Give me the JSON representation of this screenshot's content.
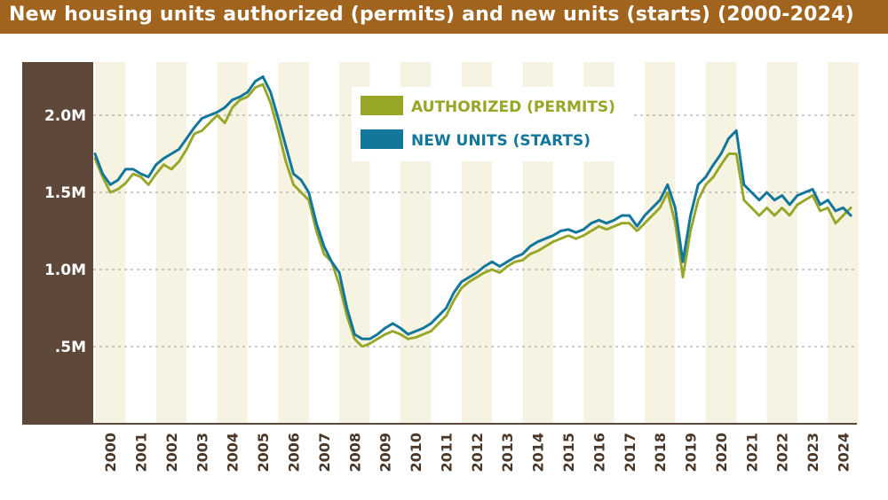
{
  "chart_data": {
    "type": "line",
    "title": "New housing units authorized (permits) and new units (starts) (2000-2024)",
    "xlabel": "",
    "ylabel": "",
    "xlim": [
      2000,
      2024.95
    ],
    "ylim": [
      0,
      2.3
    ],
    "y_ticks": [
      {
        "value": 0.5,
        "label": ".5M"
      },
      {
        "value": 1.0,
        "label": "1.0M"
      },
      {
        "value": 1.5,
        "label": "1.5M"
      },
      {
        "value": 2.0,
        "label": "2.0M"
      }
    ],
    "x_tick_labels": [
      "2000",
      "2001",
      "2002",
      "2003",
      "2004",
      "2005",
      "2006",
      "2007",
      "2008",
      "2009",
      "2010",
      "2011",
      "2012",
      "2013",
      "2014",
      "2015",
      "2016",
      "2017",
      "2018",
      "2019",
      "2020",
      "2021",
      "2022",
      "2023",
      "2024"
    ],
    "grid": "horizontal dotted",
    "legend_position": "top-center",
    "series": [
      {
        "name": "AUTHORIZED (PERMITS)",
        "color": "#97a626",
        "style": "dotted",
        "x": [
          2000.0,
          2000.25,
          2000.5,
          2000.75,
          2001.0,
          2001.25,
          2001.5,
          2001.75,
          2002.0,
          2002.25,
          2002.5,
          2002.75,
          2003.0,
          2003.25,
          2003.5,
          2003.75,
          2004.0,
          2004.25,
          2004.5,
          2004.75,
          2005.0,
          2005.25,
          2005.5,
          2005.75,
          2006.0,
          2006.25,
          2006.5,
          2006.75,
          2007.0,
          2007.25,
          2007.5,
          2007.75,
          2008.0,
          2008.25,
          2008.5,
          2008.75,
          2009.0,
          2009.25,
          2009.5,
          2009.75,
          2010.0,
          2010.25,
          2010.5,
          2010.75,
          2011.0,
          2011.25,
          2011.5,
          2011.75,
          2012.0,
          2012.25,
          2012.5,
          2012.75,
          2013.0,
          2013.25,
          2013.5,
          2013.75,
          2014.0,
          2014.25,
          2014.5,
          2014.75,
          2015.0,
          2015.25,
          2015.5,
          2015.75,
          2016.0,
          2016.25,
          2016.5,
          2016.75,
          2017.0,
          2017.25,
          2017.5,
          2017.75,
          2018.0,
          2018.25,
          2018.5,
          2018.75,
          2019.0,
          2019.25,
          2019.5,
          2019.75,
          2020.0,
          2020.25,
          2020.5,
          2020.75,
          2021.0,
          2021.25,
          2021.5,
          2021.75,
          2022.0,
          2022.25,
          2022.5,
          2022.75,
          2023.0,
          2023.25,
          2023.5,
          2023.75,
          2024.0,
          2024.25,
          2024.5,
          2024.75
        ],
        "values": [
          1.72,
          1.6,
          1.5,
          1.52,
          1.56,
          1.62,
          1.6,
          1.55,
          1.62,
          1.68,
          1.65,
          1.7,
          1.78,
          1.88,
          1.9,
          1.95,
          2.0,
          1.95,
          2.05,
          2.1,
          2.12,
          2.18,
          2.2,
          2.08,
          1.9,
          1.7,
          1.55,
          1.5,
          1.45,
          1.25,
          1.1,
          1.05,
          0.9,
          0.7,
          0.55,
          0.5,
          0.52,
          0.55,
          0.58,
          0.6,
          0.58,
          0.55,
          0.56,
          0.58,
          0.6,
          0.65,
          0.7,
          0.8,
          0.88,
          0.92,
          0.95,
          0.98,
          1.0,
          0.98,
          1.02,
          1.05,
          1.06,
          1.1,
          1.12,
          1.15,
          1.18,
          1.2,
          1.22,
          1.2,
          1.22,
          1.25,
          1.28,
          1.26,
          1.28,
          1.3,
          1.3,
          1.25,
          1.3,
          1.35,
          1.4,
          1.5,
          1.3,
          0.95,
          1.25,
          1.45,
          1.55,
          1.6,
          1.68,
          1.75,
          1.75,
          1.45,
          1.4,
          1.35,
          1.4,
          1.35,
          1.4,
          1.35,
          1.42,
          1.45,
          1.48,
          1.38,
          1.4,
          1.3,
          1.35,
          1.4
        ]
      },
      {
        "name": "NEW UNITS (STARTS)",
        "color": "#12779a",
        "style": "solid",
        "x": [
          2000.0,
          2000.25,
          2000.5,
          2000.75,
          2001.0,
          2001.25,
          2001.5,
          2001.75,
          2002.0,
          2002.25,
          2002.5,
          2002.75,
          2003.0,
          2003.25,
          2003.5,
          2003.75,
          2004.0,
          2004.25,
          2004.5,
          2004.75,
          2005.0,
          2005.25,
          2005.5,
          2005.75,
          2006.0,
          2006.25,
          2006.5,
          2006.75,
          2007.0,
          2007.25,
          2007.5,
          2007.75,
          2008.0,
          2008.25,
          2008.5,
          2008.75,
          2009.0,
          2009.25,
          2009.5,
          2009.75,
          2010.0,
          2010.25,
          2010.5,
          2010.75,
          2011.0,
          2011.25,
          2011.5,
          2011.75,
          2012.0,
          2012.25,
          2012.5,
          2012.75,
          2013.0,
          2013.25,
          2013.5,
          2013.75,
          2014.0,
          2014.25,
          2014.5,
          2014.75,
          2015.0,
          2015.25,
          2015.5,
          2015.75,
          2016.0,
          2016.25,
          2016.5,
          2016.75,
          2017.0,
          2017.25,
          2017.5,
          2017.75,
          2018.0,
          2018.25,
          2018.5,
          2018.75,
          2019.0,
          2019.25,
          2019.5,
          2019.75,
          2020.0,
          2020.25,
          2020.5,
          2020.75,
          2021.0,
          2021.25,
          2021.5,
          2021.75,
          2022.0,
          2022.25,
          2022.5,
          2022.75,
          2023.0,
          2023.25,
          2023.5,
          2023.75,
          2024.0,
          2024.25,
          2024.5,
          2024.75
        ],
        "values": [
          1.75,
          1.62,
          1.55,
          1.58,
          1.65,
          1.65,
          1.62,
          1.6,
          1.68,
          1.72,
          1.75,
          1.78,
          1.85,
          1.92,
          1.98,
          2.0,
          2.02,
          2.05,
          2.1,
          2.12,
          2.15,
          2.22,
          2.25,
          2.15,
          1.98,
          1.8,
          1.62,
          1.58,
          1.5,
          1.3,
          1.15,
          1.05,
          0.98,
          0.75,
          0.58,
          0.55,
          0.55,
          0.58,
          0.62,
          0.65,
          0.62,
          0.58,
          0.6,
          0.62,
          0.65,
          0.7,
          0.75,
          0.85,
          0.92,
          0.95,
          0.98,
          1.02,
          1.05,
          1.02,
          1.05,
          1.08,
          1.1,
          1.15,
          1.18,
          1.2,
          1.22,
          1.25,
          1.26,
          1.24,
          1.26,
          1.3,
          1.32,
          1.3,
          1.32,
          1.35,
          1.35,
          1.28,
          1.35,
          1.4,
          1.45,
          1.55,
          1.4,
          1.05,
          1.35,
          1.55,
          1.6,
          1.68,
          1.75,
          1.85,
          1.9,
          1.55,
          1.5,
          1.45,
          1.5,
          1.45,
          1.48,
          1.42,
          1.48,
          1.5,
          1.52,
          1.42,
          1.45,
          1.38,
          1.4,
          1.35
        ]
      }
    ]
  },
  "colors": {
    "title_bar": "#a0641e",
    "y_axis_panel": "#5e483a",
    "year_band": "#f7f3e3",
    "grid": "#9a9a9a",
    "x_tick_text": "#4a3728"
  }
}
